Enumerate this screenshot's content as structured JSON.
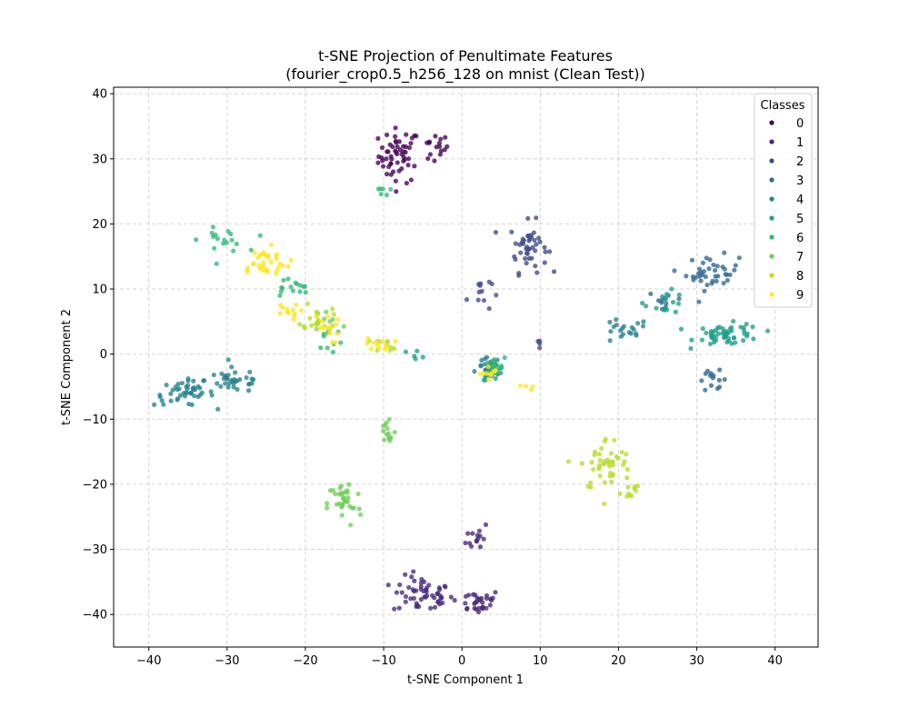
{
  "chart_data": {
    "type": "scatter",
    "title": "t-SNE Projection of Penultimate Features",
    "subtitle": "(fourier_crop0.5_h256_128 on mnist (Clean Test))",
    "xlabel": "t-SNE Component 1",
    "ylabel": "t-SNE Component 2",
    "xlim": [
      -44.5,
      45.5
    ],
    "ylim": [
      -45,
      41
    ],
    "xticks": [
      -40,
      -30,
      -20,
      -10,
      0,
      10,
      20,
      30,
      40
    ],
    "yticks": [
      -40,
      -30,
      -20,
      -10,
      0,
      10,
      20,
      30,
      40
    ],
    "grid": true,
    "legend": {
      "title": "Classes",
      "placement": "top-right"
    },
    "series": [
      {
        "name": "0",
        "color": "#440154",
        "clusters": [
          [
            -8,
            30.5,
            2.2,
            3.5,
            55
          ],
          [
            -3.5,
            31.5,
            1.5,
            2,
            16
          ]
        ]
      },
      {
        "name": "1",
        "color": "#482878",
        "clusters": [
          [
            -5,
            -37,
            3.2,
            2.4,
            55
          ],
          [
            2,
            -38,
            2.5,
            1.6,
            30
          ],
          [
            2,
            -28,
            1.2,
            2,
            14
          ]
        ]
      },
      {
        "name": "2",
        "color": "#3e4989",
        "clusters": [
          [
            8.5,
            16.5,
            2,
            3.2,
            45
          ],
          [
            2.2,
            9.5,
            1.3,
            2.6,
            12
          ],
          [
            10,
            1.5,
            0.6,
            1,
            4
          ],
          [
            3.5,
            -2.5,
            1,
            1,
            6
          ]
        ]
      },
      {
        "name": "3",
        "color": "#31688e",
        "clusters": [
          [
            32,
            12.5,
            2.8,
            2.2,
            40
          ],
          [
            26,
            8.5,
            1.8,
            1,
            10
          ],
          [
            32,
            -4,
            1.6,
            1.2,
            14
          ]
        ]
      },
      {
        "name": "4",
        "color": "#26828e",
        "clusters": [
          [
            -35.5,
            -6,
            3.2,
            1.6,
            45
          ],
          [
            -29,
            -4,
            3.2,
            1.6,
            35
          ],
          [
            20.5,
            3.5,
            2.8,
            1.6,
            20
          ],
          [
            3.5,
            -2,
            1.2,
            1.2,
            20
          ]
        ]
      },
      {
        "name": "5",
        "color": "#1f9e89",
        "clusters": [
          [
            34,
            3,
            3.5,
            1.4,
            55
          ],
          [
            26,
            8,
            2.2,
            1.4,
            15
          ],
          [
            4,
            -2.5,
            1.2,
            1.2,
            25
          ],
          [
            -6,
            0,
            1.5,
            0.5,
            5
          ]
        ]
      },
      {
        "name": "6",
        "color": "#35b779",
        "clusters": [
          [
            -30.5,
            17.5,
            2.5,
            1.5,
            18
          ],
          [
            -22,
            10,
            2.5,
            1.5,
            15
          ],
          [
            -17,
            3,
            1.5,
            2,
            10
          ],
          [
            -10.5,
            25,
            1,
            1.2,
            6
          ],
          [
            4,
            -2,
            1.2,
            1.2,
            15
          ]
        ]
      },
      {
        "name": "7",
        "color": "#6ece58",
        "clusters": [
          [
            -15,
            -23,
            1.8,
            3,
            35
          ],
          [
            -9.5,
            -12,
            0.9,
            2.5,
            15
          ],
          [
            -17,
            5,
            1.5,
            2,
            10
          ]
        ]
      },
      {
        "name": "8",
        "color": "#b5de2b",
        "clusters": [
          [
            18.5,
            -17,
            2.8,
            3.5,
            45
          ],
          [
            21.5,
            -21,
            1,
            1.2,
            10
          ],
          [
            -18.5,
            6,
            1.5,
            2,
            15
          ],
          [
            -9.5,
            1.5,
            1.5,
            0.8,
            10
          ]
        ]
      },
      {
        "name": "9",
        "color": "#fde725",
        "clusters": [
          [
            -25.5,
            14,
            3,
            2,
            35
          ],
          [
            -22.5,
            6.5,
            1.4,
            1,
            12
          ],
          [
            -17.5,
            4,
            1.5,
            2,
            15
          ],
          [
            -10.5,
            1.5,
            1.5,
            0.8,
            12
          ],
          [
            3.5,
            -3,
            1,
            1,
            10
          ],
          [
            8,
            -5,
            1,
            0.6,
            4
          ]
        ]
      }
    ]
  }
}
